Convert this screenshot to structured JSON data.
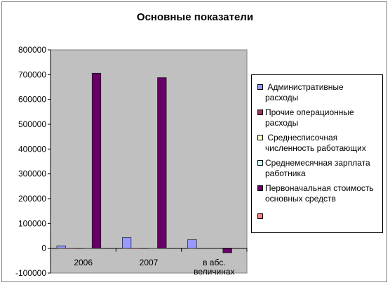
{
  "chart_data": {
    "type": "bar",
    "title": "Основные показатели",
    "categories": [
      "2006",
      "2007",
      "в абс. величинах"
    ],
    "category_lines": [
      [
        "2006"
      ],
      [
        "2007"
      ],
      [
        "в абс.",
        "величинах"
      ]
    ],
    "ylim": [
      -100000,
      800000
    ],
    "yticks": [
      -100000,
      0,
      100000,
      200000,
      300000,
      400000,
      500000,
      600000,
      700000,
      800000
    ],
    "ytick_labels": [
      "-100000",
      "0",
      "100000",
      "200000",
      "300000",
      "400000",
      "500000",
      "600000",
      "700000",
      "800000"
    ],
    "plot_background": "#c0c0c0",
    "grid": false,
    "legend_position": "right",
    "series": [
      {
        "name": "Административные расходы",
        "lines": [
          " Административные",
          "расходы"
        ],
        "color": "#9999ff",
        "values": [
          10000,
          43000,
          35000
        ]
      },
      {
        "name": "Прочие операционные расходы",
        "lines": [
          "Прочие операционные",
          "расходы"
        ],
        "color": "#993366",
        "values": [
          1500,
          1500,
          300
        ]
      },
      {
        "name": "Среднесписочная численность работающих",
        "lines": [
          " Среднесписочная",
          "численность работающих"
        ],
        "color": "#ffffcc",
        "values": [
          100,
          100,
          0
        ]
      },
      {
        "name": "Среднемесячная зарплата работника",
        "lines": [
          "Среднемесячная зарплата",
          "работника"
        ],
        "color": "#ccffff",
        "values": [
          500,
          600,
          100
        ]
      },
      {
        "name": "Первоначальная стоимость основных средств",
        "lines": [
          "Первоначальная стоимость",
          "основных средств"
        ],
        "color": "#660066",
        "values": [
          706000,
          688000,
          -18000
        ]
      },
      {
        "name": "",
        "lines": [
          ""
        ],
        "color": "#ff8080",
        "values": [
          0,
          0,
          0
        ]
      }
    ]
  }
}
